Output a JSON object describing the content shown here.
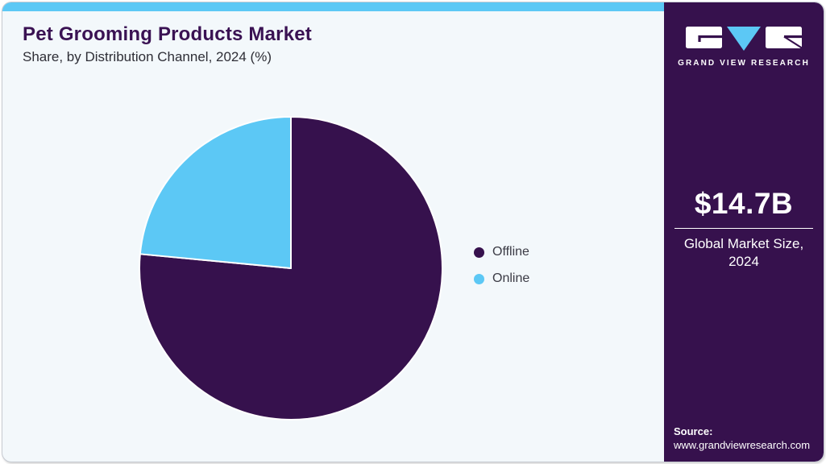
{
  "page": {
    "background": "#f3f8fb",
    "accent_blue": "#5cc8f5",
    "brand_purple": "#36114d",
    "title_color": "#3a1253"
  },
  "header": {
    "title": "Pet Grooming Products Market",
    "subtitle": "Share, by Distribution Channel, 2024 (%)"
  },
  "chart_data": {
    "type": "pie",
    "title": "Pet Grooming Products Market Share, by Distribution Channel, 2024 (%)",
    "categories": [
      "Offline",
      "Online"
    ],
    "values": [
      76.5,
      23.5
    ],
    "unit": "%",
    "colors": [
      "#36114d",
      "#5cc8f5"
    ],
    "start_angle_deg": 0,
    "direction": "clockwise",
    "legend_position": "right",
    "data_labels_shown": false
  },
  "sidebar": {
    "logo": {
      "caption": "GRAND VIEW RESEARCH"
    },
    "market_size": {
      "value": "$14.7B",
      "label": "Global Market Size, 2024"
    },
    "source": {
      "label": "Source:",
      "url": "www.grandviewresearch.com"
    }
  }
}
